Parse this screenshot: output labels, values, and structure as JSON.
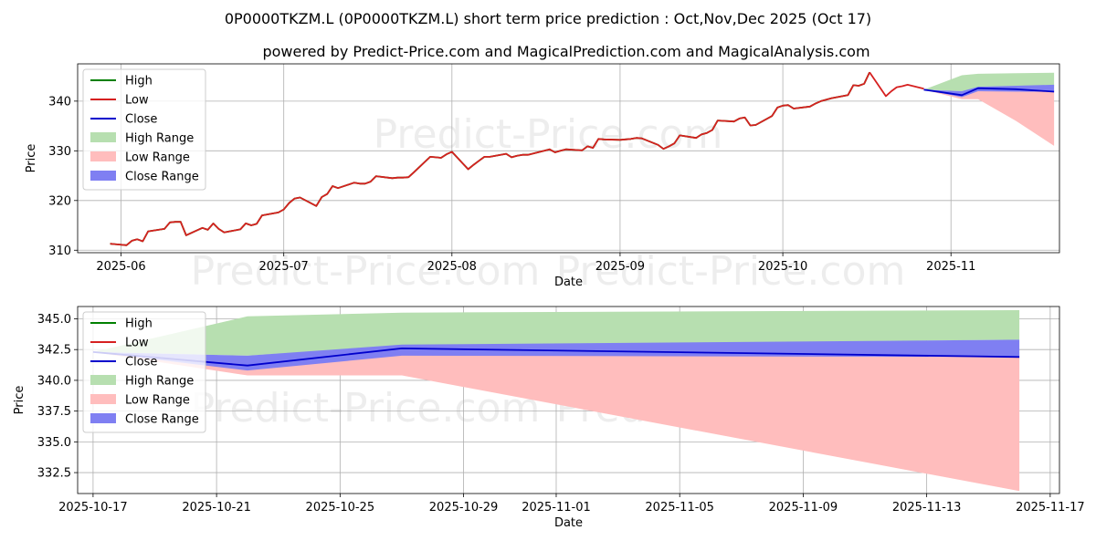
{
  "title": "0P0000TKZM.L (0P0000TKZM.L) short term price prediction : Oct,Nov,Dec 2025 (Oct 17)",
  "subtitle": "powered by Predict-Price.com and MagicalPrediction.com and MagicalAnalysis.com",
  "watermark": "Predict-Price.com",
  "colors": {
    "high": "#008000",
    "low": "#d62020",
    "close": "#0000cc",
    "high_range": "#b7dfb0",
    "low_range": "#ffbdbd",
    "close_range": "#7f7ff2"
  },
  "chart_data": [
    {
      "type": "line",
      "xlabel": "Date",
      "ylabel": "Price",
      "xlim": [
        "2025-05-24",
        "2025-11-21"
      ],
      "ylim": [
        309.5,
        347.5
      ],
      "xticks": [
        "2025-06-01",
        "2025-07-01",
        "2025-08-01",
        "2025-09-01",
        "2025-10-01",
        "2025-11-01"
      ],
      "xtick_labels": [
        "2025-06",
        "2025-07",
        "2025-08",
        "2025-09",
        "2025-10",
        "2025-11"
      ],
      "yticks": [
        310,
        320,
        330,
        340
      ],
      "grid": true,
      "legend_position": "top-left",
      "legend": [
        "High",
        "Low",
        "Close",
        "High Range",
        "Low Range",
        "Close Range"
      ],
      "history": {
        "x": [
          "2025-05-30",
          "2025-06-02",
          "2025-06-03",
          "2025-06-04",
          "2025-06-05",
          "2025-06-06",
          "2025-06-09",
          "2025-06-10",
          "2025-06-11",
          "2025-06-12",
          "2025-06-13",
          "2025-06-16",
          "2025-06-17",
          "2025-06-18",
          "2025-06-19",
          "2025-06-20",
          "2025-06-23",
          "2025-06-24",
          "2025-06-25",
          "2025-06-26",
          "2025-06-27",
          "2025-06-30",
          "2025-07-01",
          "2025-07-02",
          "2025-07-03",
          "2025-07-04",
          "2025-07-07",
          "2025-07-08",
          "2025-07-09",
          "2025-07-10",
          "2025-07-11",
          "2025-07-14",
          "2025-07-15",
          "2025-07-16",
          "2025-07-17",
          "2025-07-18",
          "2025-07-21",
          "2025-07-22",
          "2025-07-23",
          "2025-07-24",
          "2025-07-25",
          "2025-07-28",
          "2025-07-29",
          "2025-07-30",
          "2025-07-31",
          "2025-08-01",
          "2025-08-04",
          "2025-08-05",
          "2025-08-06",
          "2025-08-07",
          "2025-08-08",
          "2025-08-11",
          "2025-08-12",
          "2025-08-13",
          "2025-08-14",
          "2025-08-15",
          "2025-08-18",
          "2025-08-19",
          "2025-08-20",
          "2025-08-21",
          "2025-08-22",
          "2025-08-25",
          "2025-08-26",
          "2025-08-27",
          "2025-08-28",
          "2025-08-29",
          "2025-09-01",
          "2025-09-02",
          "2025-09-03",
          "2025-09-04",
          "2025-09-05",
          "2025-09-08",
          "2025-09-09",
          "2025-09-10",
          "2025-09-11",
          "2025-09-12",
          "2025-09-15",
          "2025-09-16",
          "2025-09-17",
          "2025-09-18",
          "2025-09-19",
          "2025-09-22",
          "2025-09-23",
          "2025-09-24",
          "2025-09-25",
          "2025-09-26",
          "2025-09-29",
          "2025-09-30",
          "2025-10-01",
          "2025-10-02",
          "2025-10-03",
          "2025-10-06",
          "2025-10-07",
          "2025-10-08",
          "2025-10-09",
          "2025-10-10",
          "2025-10-13",
          "2025-10-14",
          "2025-10-15",
          "2025-10-16",
          "2025-10-17"
        ],
        "low": [
          311.3,
          311.0,
          311.9,
          312.2,
          311.8,
          313.8,
          314.3,
          315.6,
          315.7,
          315.7,
          313.0,
          314.5,
          314.1,
          315.4,
          314.3,
          313.6,
          314.2,
          315.4,
          315.0,
          315.3,
          317.0,
          317.6,
          318.2,
          319.5,
          320.4,
          320.6,
          318.9,
          320.7,
          321.3,
          322.9,
          322.5,
          323.6,
          323.4,
          323.4,
          323.8,
          324.9,
          324.5,
          324.6,
          324.6,
          324.7,
          325.7,
          328.8,
          328.7,
          328.6,
          329.3,
          329.8,
          326.3,
          327.2,
          328.0,
          328.8,
          328.8,
          329.4,
          328.7,
          329.0,
          329.2,
          329.2,
          330.0,
          330.3,
          329.7,
          330.0,
          330.3,
          330.1,
          330.9,
          330.6,
          332.4,
          332.3,
          332.2,
          332.3,
          332.4,
          332.6,
          332.5,
          331.2,
          330.4,
          330.9,
          331.5,
          333.1,
          332.6,
          333.3,
          333.6,
          334.2,
          336.1,
          335.9,
          336.5,
          336.7,
          335.1,
          335.2,
          337.0,
          338.7,
          339.1,
          339.2,
          338.5,
          338.9,
          339.5,
          340.0,
          340.3,
          340.6,
          341.2,
          343.2,
          343.1,
          343.5,
          345.8
        ],
        "high": [
          311.3,
          311.0,
          311.9,
          312.2,
          311.8,
          313.8,
          314.3,
          315.6,
          315.7,
          315.7,
          313.0,
          314.5,
          314.1,
          315.4,
          314.3,
          313.6,
          314.2,
          315.4,
          315.0,
          315.3,
          317.0,
          317.6,
          318.2,
          319.5,
          320.4,
          320.6,
          318.9,
          320.7,
          321.3,
          322.9,
          322.5,
          323.6,
          323.4,
          323.4,
          323.8,
          324.9,
          324.5,
          324.6,
          324.6,
          324.7,
          325.7,
          328.8,
          328.7,
          328.6,
          329.3,
          329.8,
          326.3,
          327.2,
          328.0,
          328.8,
          328.8,
          329.4,
          328.7,
          329.0,
          329.2,
          329.2,
          330.0,
          330.3,
          329.7,
          330.0,
          330.3,
          330.1,
          330.9,
          330.6,
          332.4,
          332.3,
          332.2,
          332.3,
          332.4,
          332.6,
          332.5,
          331.2,
          330.4,
          330.9,
          331.5,
          333.1,
          332.6,
          333.3,
          333.6,
          334.2,
          336.1,
          335.9,
          336.5,
          336.7,
          335.1,
          335.2,
          337.0,
          338.7,
          339.1,
          339.2,
          338.5,
          338.9,
          339.5,
          340.0,
          340.3,
          340.6,
          341.2,
          343.2,
          343.1,
          343.5,
          345.8
        ]
      },
      "history_tail": {
        "x": [
          "2025-10-17",
          "2025-10-20",
          "2025-10-21",
          "2025-10-22",
          "2025-10-23",
          "2025-10-24",
          "2025-10-27"
        ],
        "low": [
          345.8,
          341.0,
          342.0,
          342.8,
          343.0,
          343.3,
          342.5
        ]
      },
      "forecast": {
        "x": [
          "2025-10-27",
          "2025-11-03",
          "2025-11-06",
          "2025-11-13",
          "2025-11-20"
        ],
        "close": [
          342.3,
          341.2,
          342.6,
          342.4,
          341.9
        ],
        "high_range_upper": [
          342.3,
          345.2,
          345.5,
          345.6,
          345.7
        ],
        "high_range_lower": [
          342.3,
          342.0,
          342.6,
          342.8,
          343.0
        ],
        "low_range_upper": [
          342.3,
          341.2,
          342.1,
          341.9,
          341.9
        ],
        "low_range_lower": [
          342.3,
          340.4,
          340.4,
          336.0,
          331.0
        ],
        "close_range_upper": [
          342.3,
          342.0,
          342.9,
          343.1,
          343.3
        ],
        "close_range_lower": [
          342.3,
          340.8,
          342.0,
          341.9,
          341.9
        ]
      }
    },
    {
      "type": "line",
      "xlabel": "Date",
      "ylabel": "Price",
      "xlim": [
        "2025-10-16.5",
        "2025-11-17.3"
      ],
      "ylim": [
        330.8,
        346.0
      ],
      "xticks": [
        "2025-10-17",
        "2025-10-21",
        "2025-10-25",
        "2025-10-29",
        "2025-11-01",
        "2025-11-05",
        "2025-11-09",
        "2025-11-13",
        "2025-11-17"
      ],
      "xtick_labels": [
        "2025-10-17",
        "2025-10-21",
        "2025-10-25",
        "2025-10-29",
        "2025-11-01",
        "2025-11-05",
        "2025-11-09",
        "2025-11-13",
        "2025-11-17"
      ],
      "yticks": [
        332.5,
        335.0,
        337.5,
        340.0,
        342.5,
        345.0
      ],
      "ytick_labels": [
        "332.5",
        "335.0",
        "337.5",
        "340.0",
        "342.5",
        "345.0"
      ],
      "grid": true,
      "legend_position": "top-left",
      "legend": [
        "High",
        "Low",
        "Close",
        "High Range",
        "Low Range",
        "Close Range"
      ],
      "forecast": {
        "x": [
          "2025-10-17",
          "2025-10-22",
          "2025-10-27",
          "2025-11-16"
        ],
        "close": [
          342.3,
          341.2,
          342.6,
          341.9
        ],
        "high_range_upper": [
          342.3,
          345.2,
          345.5,
          345.7
        ],
        "high_range_lower": [
          342.3,
          342.0,
          342.8,
          343.3
        ],
        "low_range_upper": [
          342.3,
          341.2,
          342.6,
          341.9
        ],
        "low_range_lower": [
          342.3,
          340.4,
          340.4,
          331.0
        ],
        "close_range_upper": [
          342.3,
          342.0,
          342.9,
          343.3
        ],
        "close_range_lower": [
          342.3,
          340.8,
          342.0,
          341.9
        ]
      }
    }
  ]
}
